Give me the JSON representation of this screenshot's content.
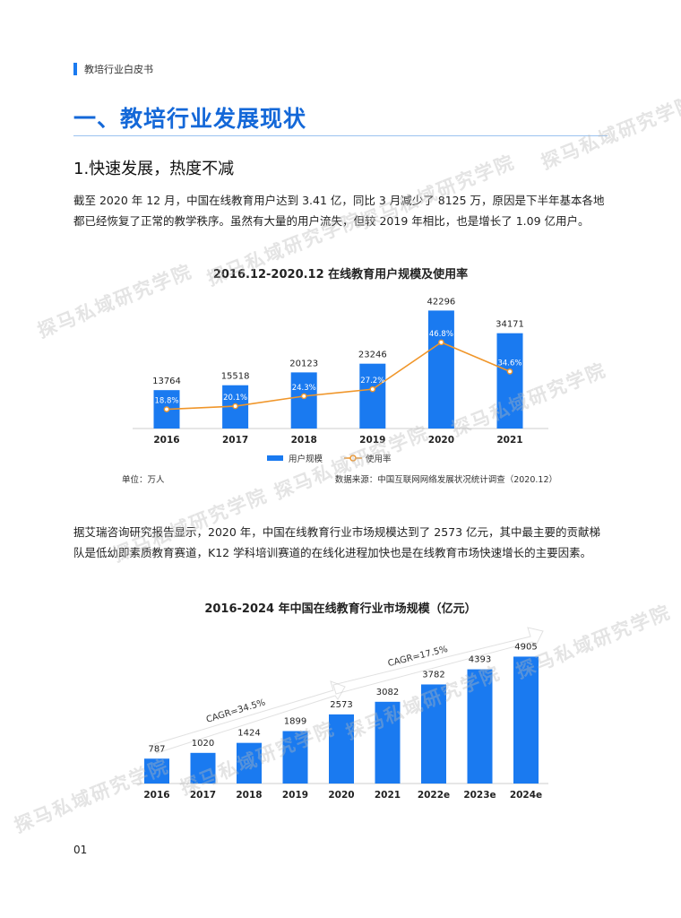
{
  "header": {
    "label": "教培行业白皮书"
  },
  "section_title": "一、教培行业发展现状",
  "subsection_title": "1.快速发展，热度不减",
  "paragraph1": "截至 2020 年 12 月，中国在线教育用户达到 3.41 亿，同比 3 月减少了 8125 万，原因是下半年基本各地都已经恢复了正常的教学秩序。虽然有大量的用户流失，但较 2019 年相比，也是增长了 1.09 亿用户。",
  "paragraph2": "据艾瑞咨询研究报告显示，2020 年，中国在线教育行业市场规模达到了 2573 亿元，其中最主要的贡献梯队是低幼即素质教育赛道，K12 学科培训赛道的在线化进程加快也是在线教育市场快速增长的主要因素。",
  "page_number": "01",
  "watermark_text": "探马私域研究学院",
  "colors": {
    "accent": "#1a7af0",
    "line": "#f0962a",
    "title": "#1468d8"
  },
  "chart_data": [
    {
      "type": "bar",
      "title": "2016.12-2020.12 在线教育用户规模及使用率",
      "categories": [
        "2016",
        "2017",
        "2018",
        "2019",
        "2020",
        "2021"
      ],
      "series": [
        {
          "name": "用户规模",
          "type": "bar",
          "values": [
            13764,
            15518,
            20123,
            23246,
            42296,
            34171
          ]
        },
        {
          "name": "使用率",
          "type": "line",
          "values": [
            18.8,
            20.1,
            24.3,
            27.2,
            46.8,
            34.6
          ],
          "labels": [
            "18.8%",
            "20.1%",
            "24.3%",
            "27.2%",
            "46.8%",
            "34.6%"
          ]
        }
      ],
      "unit_note": "单位：万人",
      "source_note": "数据来源：中国互联网网络发展状况统计调查（2020.12）",
      "legend_position": "bottom"
    },
    {
      "type": "bar",
      "title": "2016-2024 年中国在线教育行业市场规模（亿元）",
      "categories": [
        "2016",
        "2017",
        "2018",
        "2019",
        "2020",
        "2021",
        "2022e",
        "2023e",
        "2024e"
      ],
      "values": [
        787,
        1020,
        1424,
        1899,
        2573,
        3082,
        3782,
        4393,
        4905
      ],
      "annotations": [
        "CAGR=34.5%",
        "CAGR=17.5%"
      ]
    }
  ]
}
